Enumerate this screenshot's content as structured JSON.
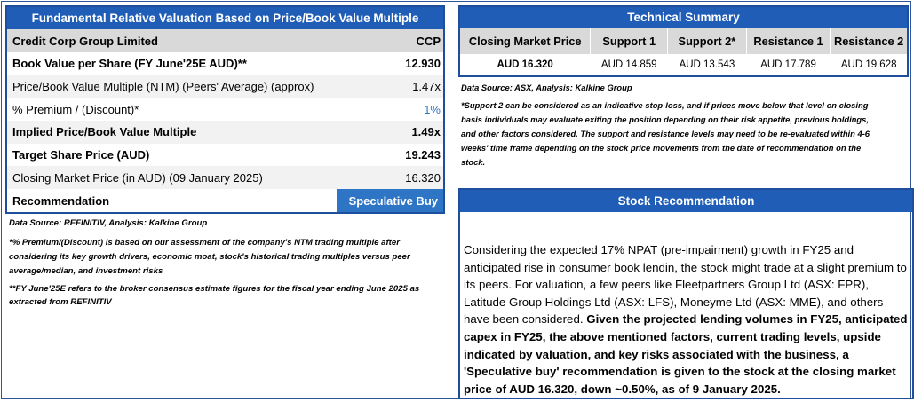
{
  "valuation": {
    "title": "Fundamental Relative Valuation Based on Price/Book Value Multiple",
    "company": "Credit Corp Group Limited",
    "ticker": "CCP",
    "rows": [
      {
        "label": "Book Value per Share (FY June'25E AUD)**",
        "value": "12.930"
      },
      {
        "label": "Price/Book Value Multiple (NTM)  (Peers' Average) (approx)",
        "value": "1.47x"
      },
      {
        "label": "% Premium / (Discount)*",
        "value": "1%"
      },
      {
        "label": "Implied Price/Book Value Multiple",
        "value": "1.49x"
      },
      {
        "label": "Target Share Price (AUD)",
        "value": "19.243"
      },
      {
        "label": "Closing Market Price (in AUD) (09 January 2025)",
        "value": "16.320"
      }
    ],
    "recommendation_label": "Recommendation",
    "recommendation_value": "Speculative Buy",
    "data_source": "Data Source: REFINITIV, Analysis: Kalkine Group",
    "note1_line1": "*% Premium/(Discount) is based on our assessment of the company's NTM trading multiple after",
    "note1_line2": "considering its key growth drivers, economic moat, stock's historical trading multiples versus peer",
    "note1_line3": "average/median, and investment risks",
    "note2_line1": "**FY June'25E refers to the broker consensus estimate figures for the fiscal year ending June 2025  as",
    "note2_line2": "extracted from REFINITIV"
  },
  "technical": {
    "title": "Technical Summary",
    "headers": [
      "Closing Market Price",
      "Support 1",
      "Support 2*",
      "Resistance 1",
      "Resistance 2"
    ],
    "values": [
      "AUD 16.320",
      "AUD 14.859",
      "AUD 13.543",
      "AUD 17.789",
      "AUD 19.628"
    ],
    "data_source": "Data Source: ASX, Analysis: Kalkine Group",
    "note_line1": "*Support 2 can be considered as an indicative stop-loss, and if prices move below that level on closing",
    "note_line2": "basis individuals may evaluate exiting the position depending on their risk appetite, previous holdings,",
    "note_line3": "and other factors considered. The support and resistance levels may need to be re-evaluated within 4-6",
    "note_line4": "weeks' time frame depending on the stock price movements from the date of recommendation on the",
    "note_line5": "stock."
  },
  "stock_recommendation": {
    "title": "Stock Recommendation",
    "plain_text": "Considering the expected 17% NPAT (pre-impairment) growth in FY25 and anticipated rise in consumer book lendin, the stock might trade at a slight premium to its peers. For valuation, a few peers like Fleetpartners Group Ltd (ASX: FPR), Latitude Group Holdings Ltd (ASX: LFS), Moneyme Ltd (ASX: MME), and others have been considered. ",
    "bold_text": "Given the projected lending volumes in FY25, anticipated capex in FY25, the above mentioned factors, current trading levels, upside indicated by valuation, and key risks associated with the business, a 'Speculative buy' recommendation is given to the stock at the closing market price of AUD 16.320, down ~0.50%, as of 9 January 2025."
  }
}
